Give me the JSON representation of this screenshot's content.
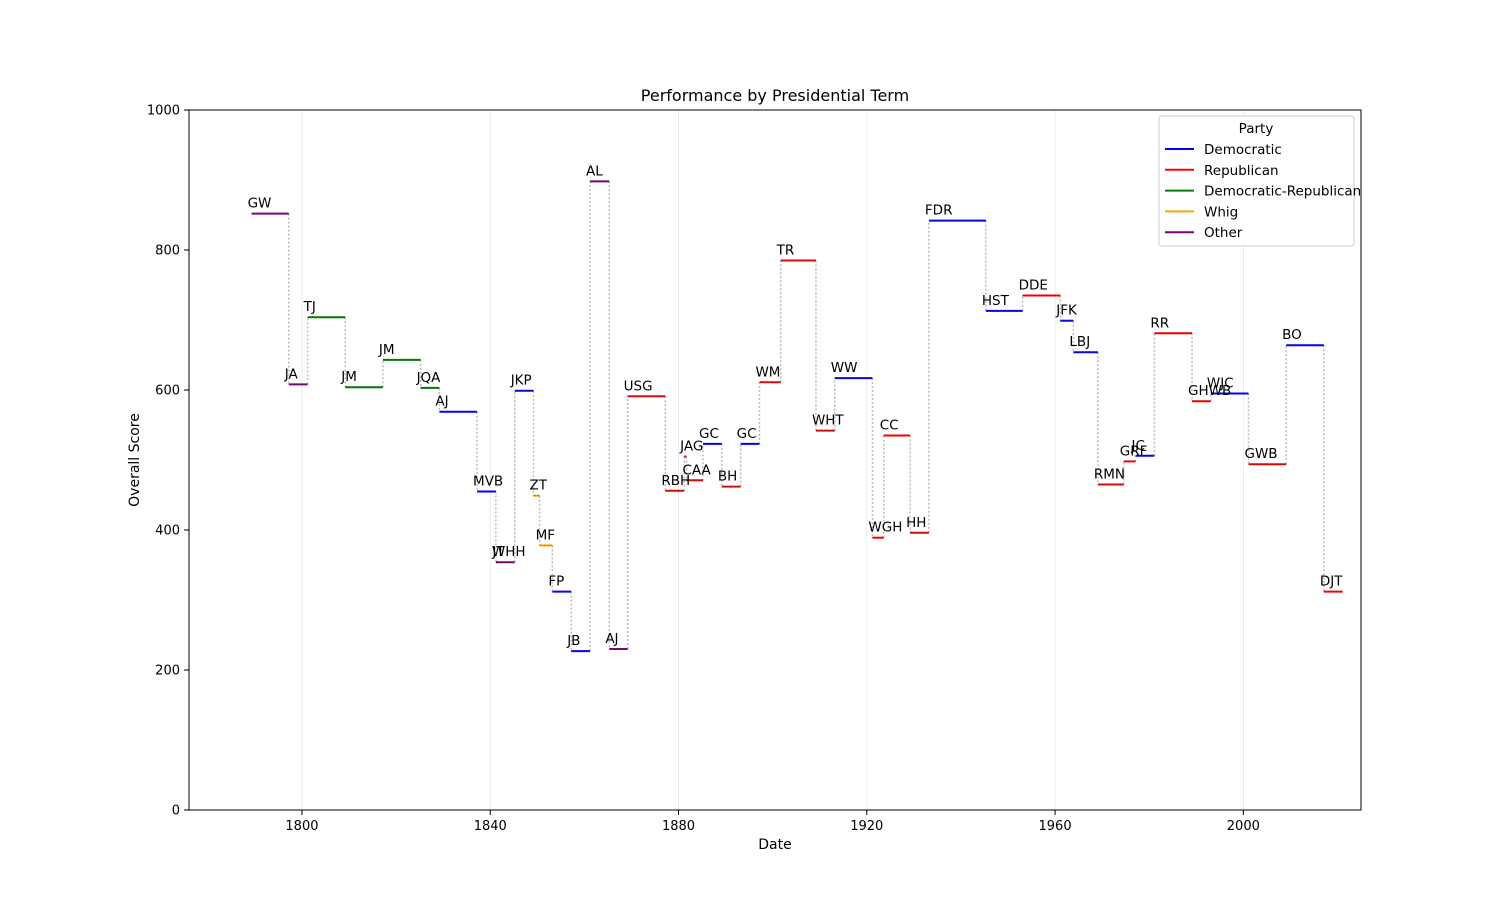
{
  "chart_data": {
    "type": "line",
    "title": "Performance by Presidential Term",
    "xlabel": "Date",
    "ylabel": "Overall Score",
    "xlim": [
      1776,
      2025
    ],
    "ylim": [
      0,
      1000
    ],
    "xticks": [
      1800,
      1840,
      1880,
      1920,
      1960,
      2000
    ],
    "yticks": [
      0,
      200,
      400,
      600,
      800,
      1000
    ],
    "grid": "x only",
    "legend": {
      "title": "Party",
      "placement": "top-right",
      "entries": [
        {
          "name": "Democratic",
          "color": "#0000ff"
        },
        {
          "name": "Republican",
          "color": "#ff0000"
        },
        {
          "name": "Democratic-Republican",
          "color": "#008000"
        },
        {
          "name": "Whig",
          "color": "#ffa500"
        },
        {
          "name": "Other",
          "color": "#800080"
        }
      ]
    },
    "connector_color": "#bbbbbb",
    "terms": [
      {
        "label": "GW",
        "party": "Other",
        "start": 1789.3,
        "end": 1797.2,
        "score": 852
      },
      {
        "label": "JA",
        "party": "Other",
        "start": 1797.2,
        "end": 1801.2,
        "score": 608
      },
      {
        "label": "TJ",
        "party": "Democratic-Republican",
        "start": 1801.2,
        "end": 1809.2,
        "score": 704
      },
      {
        "label": "JM",
        "party": "Democratic-Republican",
        "start": 1809.2,
        "end": 1817.2,
        "score": 604
      },
      {
        "label": "JM",
        "party": "Democratic-Republican",
        "start": 1817.2,
        "end": 1825.2,
        "score": 643
      },
      {
        "label": "JQA",
        "party": "Democratic-Republican",
        "start": 1825.2,
        "end": 1829.2,
        "score": 603
      },
      {
        "label": "AJ",
        "party": "Democratic",
        "start": 1829.2,
        "end": 1837.2,
        "score": 569
      },
      {
        "label": "MVB",
        "party": "Democratic",
        "start": 1837.2,
        "end": 1841.2,
        "score": 455
      },
      {
        "label": "WHH",
        "party": "Other",
        "start": 1841.2,
        "end": 1841.3,
        "score": 354
      },
      {
        "label": "JT",
        "party": "Other",
        "start": 1841.3,
        "end": 1845.2,
        "score": 354
      },
      {
        "label": "JKP",
        "party": "Democratic",
        "start": 1845.2,
        "end": 1849.2,
        "score": 599
      },
      {
        "label": "ZT",
        "party": "Whig",
        "start": 1849.2,
        "end": 1850.5,
        "score": 449
      },
      {
        "label": "MF",
        "party": "Whig",
        "start": 1850.5,
        "end": 1853.2,
        "score": 378
      },
      {
        "label": "FP",
        "party": "Democratic",
        "start": 1853.2,
        "end": 1857.2,
        "score": 312
      },
      {
        "label": "JB",
        "party": "Democratic",
        "start": 1857.2,
        "end": 1861.2,
        "score": 227
      },
      {
        "label": "AL",
        "party": "Other",
        "start": 1861.2,
        "end": 1865.3,
        "score": 898
      },
      {
        "label": "AJ",
        "party": "Other",
        "start": 1865.3,
        "end": 1869.2,
        "score": 230
      },
      {
        "label": "USG",
        "party": "Republican",
        "start": 1869.2,
        "end": 1877.2,
        "score": 591
      },
      {
        "label": "RBH",
        "party": "Republican",
        "start": 1877.2,
        "end": 1881.2,
        "score": 456
      },
      {
        "label": "JAG",
        "party": "Republican",
        "start": 1881.2,
        "end": 1881.7,
        "score": 505
      },
      {
        "label": "CAA",
        "party": "Republican",
        "start": 1881.7,
        "end": 1885.2,
        "score": 471
      },
      {
        "label": "GC",
        "party": "Democratic",
        "start": 1885.2,
        "end": 1889.2,
        "score": 523
      },
      {
        "label": "BH",
        "party": "Republican",
        "start": 1889.2,
        "end": 1893.2,
        "score": 462
      },
      {
        "label": "GC",
        "party": "Democratic",
        "start": 1893.2,
        "end": 1897.2,
        "score": 523
      },
      {
        "label": "WM",
        "party": "Republican",
        "start": 1897.2,
        "end": 1901.7,
        "score": 611
      },
      {
        "label": "TR",
        "party": "Republican",
        "start": 1901.7,
        "end": 1909.2,
        "score": 785
      },
      {
        "label": "WHT",
        "party": "Republican",
        "start": 1909.2,
        "end": 1913.2,
        "score": 542
      },
      {
        "label": "WW",
        "party": "Democratic",
        "start": 1913.2,
        "end": 1921.2,
        "score": 617
      },
      {
        "label": "WGH",
        "party": "Republican",
        "start": 1921.2,
        "end": 1923.6,
        "score": 389
      },
      {
        "label": "CC",
        "party": "Republican",
        "start": 1923.6,
        "end": 1929.2,
        "score": 535
      },
      {
        "label": "HH",
        "party": "Republican",
        "start": 1929.2,
        "end": 1933.2,
        "score": 396
      },
      {
        "label": "FDR",
        "party": "Democratic",
        "start": 1933.2,
        "end": 1945.3,
        "score": 842
      },
      {
        "label": "HST",
        "party": "Democratic",
        "start": 1945.3,
        "end": 1953.1,
        "score": 713
      },
      {
        "label": "DDE",
        "party": "Republican",
        "start": 1953.1,
        "end": 1961.1,
        "score": 735
      },
      {
        "label": "JFK",
        "party": "Democratic",
        "start": 1961.1,
        "end": 1963.9,
        "score": 699
      },
      {
        "label": "LBJ",
        "party": "Democratic",
        "start": 1963.9,
        "end": 1969.1,
        "score": 654
      },
      {
        "label": "RMN",
        "party": "Republican",
        "start": 1969.1,
        "end": 1974.6,
        "score": 465
      },
      {
        "label": "GRF",
        "party": "Republican",
        "start": 1974.6,
        "end": 1977.1,
        "score": 498
      },
      {
        "label": "JC",
        "party": "Democratic",
        "start": 1977.1,
        "end": 1981.1,
        "score": 506
      },
      {
        "label": "RR",
        "party": "Republican",
        "start": 1981.1,
        "end": 1989.1,
        "score": 681
      },
      {
        "label": "GHWB",
        "party": "Republican",
        "start": 1989.1,
        "end": 1993.1,
        "score": 584
      },
      {
        "label": "WJC",
        "party": "Democratic",
        "start": 1993.1,
        "end": 2001.1,
        "score": 595
      },
      {
        "label": "GWB",
        "party": "Republican",
        "start": 2001.1,
        "end": 2009.1,
        "score": 494
      },
      {
        "label": "BO",
        "party": "Democratic",
        "start": 2009.1,
        "end": 2017.1,
        "score": 664
      },
      {
        "label": "DJT",
        "party": "Republican",
        "start": 2017.1,
        "end": 2021.1,
        "score": 312
      }
    ]
  }
}
